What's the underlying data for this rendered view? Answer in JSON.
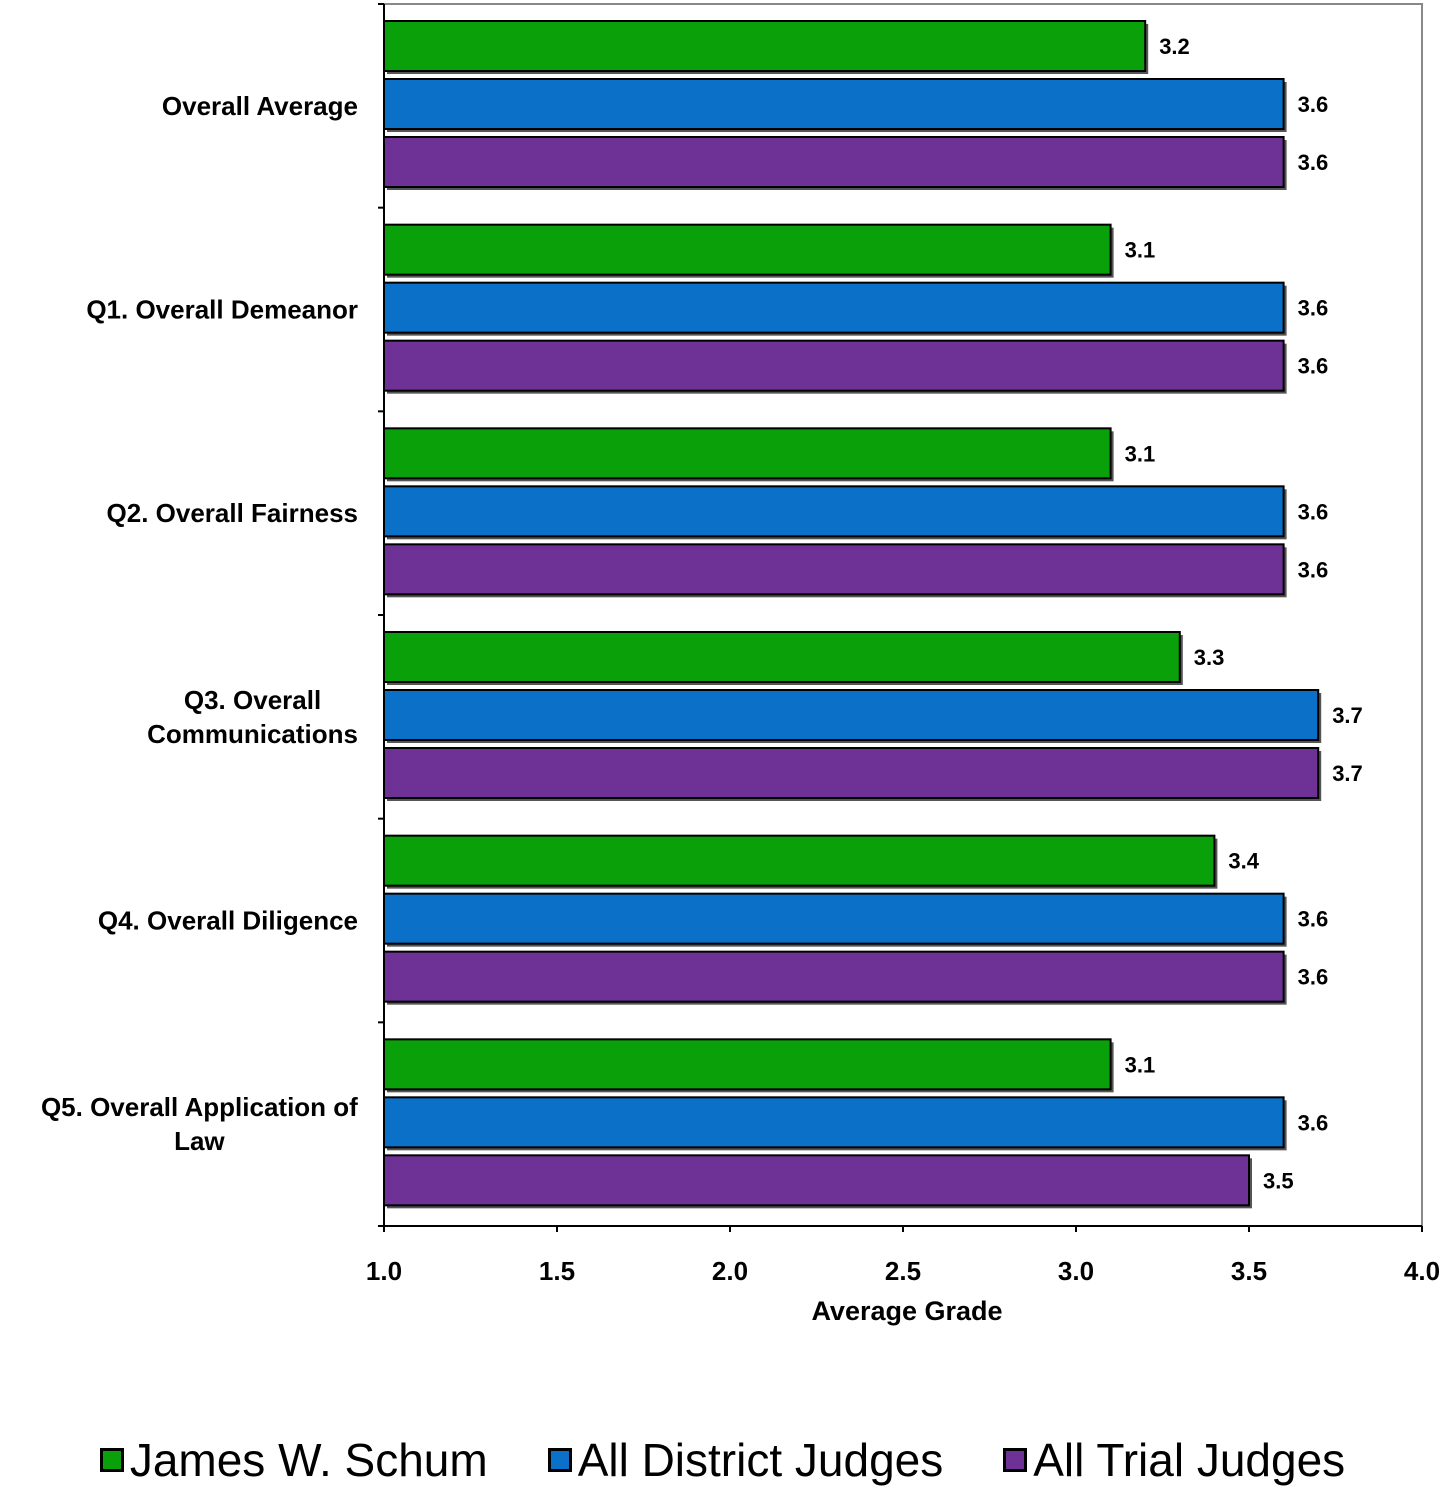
{
  "chart_data": {
    "type": "bar",
    "orientation": "horizontal",
    "categories": [
      "Overall Average",
      "Q1. Overall Demeanor",
      "Q2. Overall Fairness",
      "Q3. Overall Communications",
      "Q4. Overall Diligence",
      "Q5. Overall Application of Law"
    ],
    "category_lines": [
      [
        "Overall Average"
      ],
      [
        "Q1. Overall Demeanor"
      ],
      [
        "Q2. Overall Fairness"
      ],
      [
        "Q3. Overall",
        "Communications"
      ],
      [
        "Q4. Overall Diligence"
      ],
      [
        "Q5. Overall Application of",
        "Law"
      ]
    ],
    "series": [
      {
        "name": "James W. Schum",
        "color": "#0aa00a",
        "values": [
          3.2,
          3.1,
          3.1,
          3.3,
          3.4,
          3.1
        ]
      },
      {
        "name": "All District Judges",
        "color": "#0a70c8",
        "values": [
          3.6,
          3.6,
          3.6,
          3.7,
          3.6,
          3.6
        ]
      },
      {
        "name": "All Trial Judges",
        "color": "#6e3296",
        "values": [
          3.6,
          3.6,
          3.6,
          3.7,
          3.6,
          3.5
        ]
      }
    ],
    "data_labels": [
      [
        "3.2",
        "3.1",
        "3.1",
        "3.3",
        "3.4",
        "3.1"
      ],
      [
        "3.6",
        "3.6",
        "3.6",
        "3.7",
        "3.6",
        "3.6"
      ],
      [
        "3.6",
        "3.6",
        "3.6",
        "3.7",
        "3.6",
        "3.5"
      ]
    ],
    "x_ticks": [
      "1.0",
      "1.5",
      "2.0",
      "2.5",
      "3.0",
      "3.5",
      "4.0"
    ],
    "xlabel": "Average Grade",
    "ylabel": "",
    "title": "",
    "xlim": [
      1.0,
      4.0
    ],
    "grid": false,
    "legend_position": "bottom"
  }
}
